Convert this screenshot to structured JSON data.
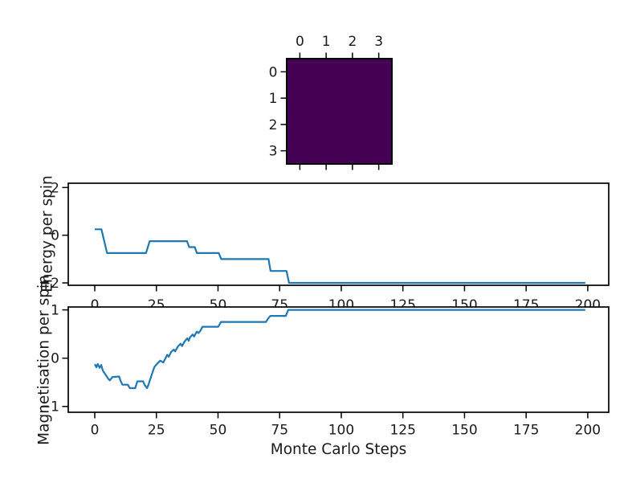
{
  "colors": {
    "line": "#1f77b4",
    "heatmap_cell": "#440154",
    "axis": "#000000",
    "text": "#1a1a1a",
    "background": "#ffffff"
  },
  "chart_data": [
    {
      "id": "lattice",
      "type": "heatmap",
      "rows": 4,
      "cols": 4,
      "xtick_labels": [
        "0",
        "1",
        "2",
        "3"
      ],
      "ytick_labels": [
        "0",
        "1",
        "2",
        "3"
      ],
      "cells": "uniform",
      "cell_color": "#440154",
      "legend": "none",
      "grid": false
    },
    {
      "id": "energy",
      "type": "line",
      "ylabel": "Energy per spin",
      "xlabel": "",
      "xlim": [
        -10.75,
        208.5
      ],
      "ylim": [
        -2.1,
        2.18
      ],
      "xtick_values": [
        0,
        25,
        50,
        75,
        100,
        125,
        150,
        175,
        200
      ],
      "xtick_labels": [
        "0",
        "25",
        "50",
        "75",
        "100",
        "125",
        "150",
        "175",
        "200"
      ],
      "ytick_values": [
        2,
        0,
        -2
      ],
      "ytick_labels": [
        "2",
        "0",
        "−2"
      ],
      "grid": false,
      "legend": "none",
      "points": [
        [
          0,
          0.25
        ],
        [
          2.7,
          0.25
        ],
        [
          5,
          -0.75
        ],
        [
          20.8,
          -0.75
        ],
        [
          22.3,
          -0.25
        ],
        [
          37.4,
          -0.25
        ],
        [
          38.3,
          -0.5
        ],
        [
          40.6,
          -0.5
        ],
        [
          41.4,
          -0.75
        ],
        [
          50.3,
          -0.75
        ],
        [
          51.3,
          -1.0
        ],
        [
          70.5,
          -1.0
        ],
        [
          71.3,
          -1.5
        ],
        [
          77.8,
          -1.5
        ],
        [
          78.8,
          -2.0
        ],
        [
          199,
          -2.0
        ]
      ]
    },
    {
      "id": "magnetisation",
      "type": "line",
      "ylabel": "Magnetisation per spin",
      "xlabel": "Monte Carlo Steps",
      "xlim": [
        -10.75,
        208.5
      ],
      "ylim": [
        -1.12,
        1.06
      ],
      "xtick_values": [
        0,
        25,
        50,
        75,
        100,
        125,
        150,
        175,
        200
      ],
      "xtick_labels": [
        "0",
        "25",
        "50",
        "75",
        "100",
        "125",
        "150",
        "175",
        "200"
      ],
      "ytick_values": [
        1,
        0,
        -1
      ],
      "ytick_labels": [
        "1",
        "0",
        "−1"
      ],
      "grid": false,
      "legend": "none",
      "points": [
        [
          0,
          -0.125
        ],
        [
          0.7,
          -0.19
        ],
        [
          1.2,
          -0.12
        ],
        [
          2,
          -0.2
        ],
        [
          2.6,
          -0.14
        ],
        [
          3.3,
          -0.26
        ],
        [
          4.5,
          -0.35
        ],
        [
          5.5,
          -0.43
        ],
        [
          6.1,
          -0.46
        ],
        [
          7.2,
          -0.39
        ],
        [
          9.9,
          -0.38
        ],
        [
          10.4,
          -0.46
        ],
        [
          11.2,
          -0.55
        ],
        [
          13.4,
          -0.55
        ],
        [
          14.2,
          -0.62
        ],
        [
          16.4,
          -0.62
        ],
        [
          17.3,
          -0.48
        ],
        [
          19.6,
          -0.48
        ],
        [
          20.3,
          -0.56
        ],
        [
          21.2,
          -0.62
        ],
        [
          21.8,
          -0.55
        ],
        [
          22.4,
          -0.45
        ],
        [
          23.4,
          -0.3
        ],
        [
          24.2,
          -0.18
        ],
        [
          25.6,
          -0.1
        ],
        [
          26.6,
          -0.05
        ],
        [
          27.8,
          -0.09
        ],
        [
          28.9,
          0.02
        ],
        [
          29.4,
          0.07
        ],
        [
          30,
          0.03
        ],
        [
          31,
          0.13
        ],
        [
          32.1,
          0.18
        ],
        [
          32.6,
          0.14
        ],
        [
          33.7,
          0.24
        ],
        [
          34.8,
          0.3
        ],
        [
          35.4,
          0.25
        ],
        [
          36.5,
          0.35
        ],
        [
          37.5,
          0.41
        ],
        [
          38.1,
          0.36
        ],
        [
          38.6,
          0.43
        ],
        [
          39.7,
          0.49
        ],
        [
          40.3,
          0.45
        ],
        [
          41.4,
          0.55
        ],
        [
          42.1,
          0.52
        ],
        [
          43,
          0.58
        ],
        [
          43.7,
          0.65
        ],
        [
          50.1,
          0.65
        ],
        [
          51.2,
          0.75
        ],
        [
          69.5,
          0.75
        ],
        [
          70.3,
          0.82
        ],
        [
          71.2,
          0.875
        ],
        [
          77.5,
          0.875
        ],
        [
          78.5,
          1.0
        ],
        [
          199,
          1.0
        ]
      ]
    }
  ]
}
